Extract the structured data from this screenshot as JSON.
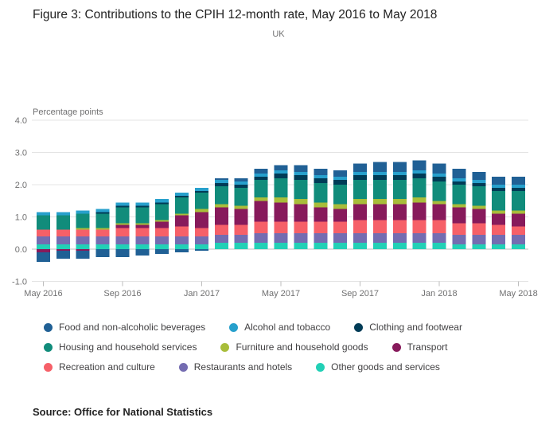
{
  "header": {
    "title": "Figure 3: Contributions to the CPIH 12-month rate, May 2016 to May 2018",
    "subtitle": "UK"
  },
  "source_note": "Source: Office for National Statistics",
  "chart_data": {
    "type": "bar",
    "stacked": true,
    "title": "Contributions to the CPIH 12-month rate, May 2016 to May 2018",
    "ylabel": "Percentage points",
    "ylim": [
      -1.0,
      4.0
    ],
    "yticks": [
      4,
      3,
      2,
      1,
      0,
      -1
    ],
    "grid": true,
    "legend_position": "bottom",
    "categories": [
      "May 2016",
      "Jun 2016",
      "Jul 2016",
      "Aug 2016",
      "Sep 2016",
      "Oct 2016",
      "Nov 2016",
      "Dec 2016",
      "Jan 2017",
      "Feb 2017",
      "Mar 2017",
      "Apr 2017",
      "May 2017",
      "Jun 2017",
      "Jul 2017",
      "Aug 2017",
      "Sep 2017",
      "Oct 2017",
      "Nov 2017",
      "Dec 2017",
      "Jan 2018",
      "Feb 2018",
      "Mar 2018",
      "Apr 2018",
      "May 2018"
    ],
    "xticks": [
      {
        "i": 0,
        "label": "May 2016"
      },
      {
        "i": 4,
        "label": "Sep 2016"
      },
      {
        "i": 8,
        "label": "Jan 2017"
      },
      {
        "i": 12,
        "label": "May 2017"
      },
      {
        "i": 16,
        "label": "Sep 2017"
      },
      {
        "i": 20,
        "label": "Jan 2018"
      },
      {
        "i": 24,
        "label": "May 2018"
      }
    ],
    "series": [
      {
        "name": "Food and non-alcoholic beverages",
        "color": "#206095",
        "values": [
          -0.3,
          -0.25,
          -0.25,
          -0.25,
          -0.25,
          -0.2,
          -0.15,
          -0.1,
          -0.05,
          0.05,
          0.1,
          0.15,
          0.15,
          0.2,
          0.2,
          0.2,
          0.25,
          0.3,
          0.3,
          0.3,
          0.3,
          0.3,
          0.25,
          0.25,
          0.25
        ]
      },
      {
        "name": "Alcohol and tobacco",
        "color": "#27a0cc",
        "values": [
          0.1,
          0.1,
          0.1,
          0.1,
          0.1,
          0.1,
          0.1,
          0.1,
          0.1,
          0.1,
          0.1,
          0.1,
          0.1,
          0.1,
          0.1,
          0.1,
          0.1,
          0.1,
          0.1,
          0.1,
          0.1,
          0.1,
          0.1,
          0.1,
          0.1
        ]
      },
      {
        "name": "Clothing and footwear",
        "color": "#003c57",
        "values": [
          0.0,
          0.0,
          0.0,
          0.05,
          0.05,
          0.05,
          0.05,
          0.05,
          0.05,
          0.1,
          0.1,
          0.1,
          0.15,
          0.15,
          0.15,
          0.15,
          0.15,
          0.15,
          0.15,
          0.15,
          0.15,
          0.1,
          0.1,
          0.1,
          0.1
        ]
      },
      {
        "name": "Housing and household services",
        "color": "#118c7b",
        "values": [
          0.45,
          0.45,
          0.45,
          0.45,
          0.5,
          0.5,
          0.5,
          0.5,
          0.5,
          0.55,
          0.55,
          0.55,
          0.6,
          0.6,
          0.6,
          0.6,
          0.6,
          0.6,
          0.6,
          0.6,
          0.6,
          0.6,
          0.6,
          0.6,
          0.6
        ]
      },
      {
        "name": "Furniture and household goods",
        "color": "#a8bd3a",
        "values": [
          0.0,
          0.0,
          0.05,
          0.05,
          0.05,
          0.05,
          0.05,
          0.05,
          0.1,
          0.1,
          0.1,
          0.1,
          0.15,
          0.15,
          0.15,
          0.15,
          0.15,
          0.15,
          0.15,
          0.15,
          0.1,
          0.1,
          0.1,
          0.1,
          0.1
        ]
      },
      {
        "name": "Transport",
        "color": "#871a5b",
        "values": [
          -0.1,
          -0.05,
          -0.05,
          0.0,
          0.1,
          0.1,
          0.2,
          0.35,
          0.5,
          0.55,
          0.5,
          0.65,
          0.6,
          0.55,
          0.45,
          0.4,
          0.5,
          0.5,
          0.5,
          0.55,
          0.5,
          0.5,
          0.45,
          0.35,
          0.4
        ]
      },
      {
        "name": "Recreation and culture",
        "color": "#f66068",
        "values": [
          0.2,
          0.2,
          0.2,
          0.2,
          0.25,
          0.25,
          0.25,
          0.3,
          0.25,
          0.3,
          0.3,
          0.35,
          0.35,
          0.35,
          0.35,
          0.35,
          0.4,
          0.4,
          0.4,
          0.4,
          0.4,
          0.35,
          0.35,
          0.3,
          0.25
        ]
      },
      {
        "name": "Restaurants and hotels",
        "color": "#746cb1",
        "values": [
          0.25,
          0.25,
          0.25,
          0.25,
          0.25,
          0.25,
          0.25,
          0.25,
          0.25,
          0.25,
          0.25,
          0.3,
          0.3,
          0.3,
          0.3,
          0.3,
          0.3,
          0.3,
          0.3,
          0.3,
          0.3,
          0.3,
          0.3,
          0.3,
          0.3
        ]
      },
      {
        "name": "Other goods and services",
        "color": "#22d0b6",
        "values": [
          0.15,
          0.15,
          0.15,
          0.15,
          0.15,
          0.15,
          0.15,
          0.15,
          0.15,
          0.2,
          0.2,
          0.2,
          0.2,
          0.2,
          0.2,
          0.2,
          0.2,
          0.2,
          0.2,
          0.2,
          0.2,
          0.15,
          0.15,
          0.15,
          0.15
        ]
      }
    ]
  }
}
